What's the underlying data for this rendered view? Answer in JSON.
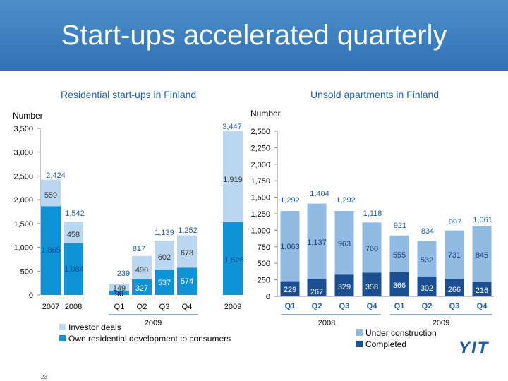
{
  "title": "Start-ups accelerated quarterly",
  "slide_number": "23",
  "logo_text": "YIT",
  "colors": {
    "header": "#3a80c1",
    "accent": "#1f5fa7",
    "own": "#0f93d6",
    "investor": "#bcd8f1",
    "under_construction": "#92bbe3",
    "completed": "#1b4f92"
  },
  "chart_data": [
    {
      "type": "bar",
      "title": "Residential start-ups in Finland",
      "ylabel": "Number",
      "ylim": [
        0,
        3500
      ],
      "yticks": [
        "0",
        "500",
        "1,000",
        "1,500",
        "2,000",
        "2,500",
        "3,000",
        "3,500"
      ],
      "categories": [
        "2007",
        "2008",
        "Q1",
        "Q2",
        "Q3",
        "Q4",
        "2009"
      ],
      "group_label": "2009",
      "series": [
        {
          "name": "Own residential development to consumers",
          "values": [
            1865,
            1084,
            90,
            327,
            537,
            574,
            1528
          ],
          "labels": [
            "1,865",
            "1,084",
            "90",
            "327",
            "537",
            "574",
            "1,528"
          ]
        },
        {
          "name": "Investor deals",
          "values": [
            559,
            458,
            149,
            490,
            602,
            678,
            1919
          ],
          "labels": [
            "559",
            "458",
            "149",
            "490",
            "602",
            "678",
            "1,919"
          ]
        }
      ],
      "totals": [
        "2,424",
        "1,542",
        "239",
        "817",
        "1,139",
        "1,252",
        "3,447"
      ]
    },
    {
      "type": "bar",
      "title": "Unsold apartments in Finland",
      "ylabel": "Number",
      "ylim": [
        0,
        2500
      ],
      "yticks": [
        "0",
        "250",
        "500",
        "750",
        "1,000",
        "1,250",
        "1,500",
        "1,750",
        "2,000",
        "2,250",
        "2,500"
      ],
      "categories": [
        "Q1",
        "Q2",
        "Q3",
        "Q4",
        "Q1",
        "Q2",
        "Q3",
        "Q4"
      ],
      "group_labels": [
        "2008",
        "2009"
      ],
      "series": [
        {
          "name": "Completed",
          "values": [
            229,
            267,
            329,
            358,
            366,
            302,
            266,
            216
          ],
          "labels": [
            "229",
            "267",
            "329",
            "358",
            "366",
            "302",
            "266",
            "216"
          ]
        },
        {
          "name": "Under construction",
          "values": [
            1063,
            1137,
            963,
            760,
            555,
            532,
            731,
            845
          ],
          "labels": [
            "1,063",
            "1,137",
            "963",
            "760",
            "555",
            "532",
            "731",
            "845"
          ]
        }
      ],
      "totals": [
        "1,292",
        "1,404",
        "1,292",
        "1,118",
        "921",
        "834",
        "997",
        "1,061"
      ]
    }
  ]
}
